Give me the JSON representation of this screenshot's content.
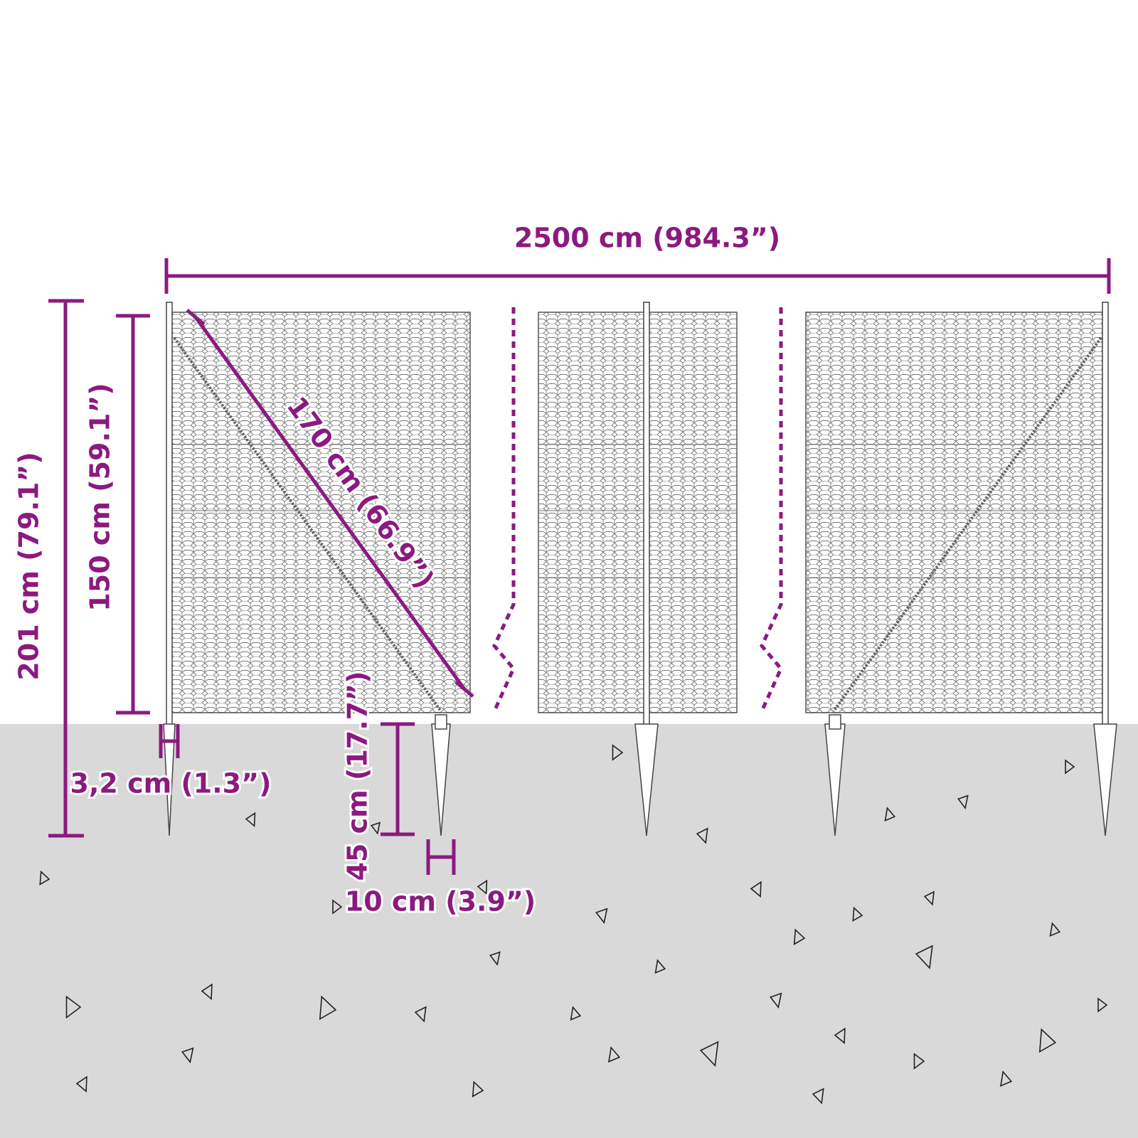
{
  "dimensions": {
    "total_length": "2500 cm (984.3”)",
    "total_height": "201 cm (79.1”)",
    "fence_height": "150 cm (59.1”)",
    "diagonal": "170 cm (66.9”)",
    "post_diameter": "3,2 cm (1.3”)",
    "spike_length": "45 cm (17.7”)",
    "spike_width": "10 cm (3.9”)"
  }
}
